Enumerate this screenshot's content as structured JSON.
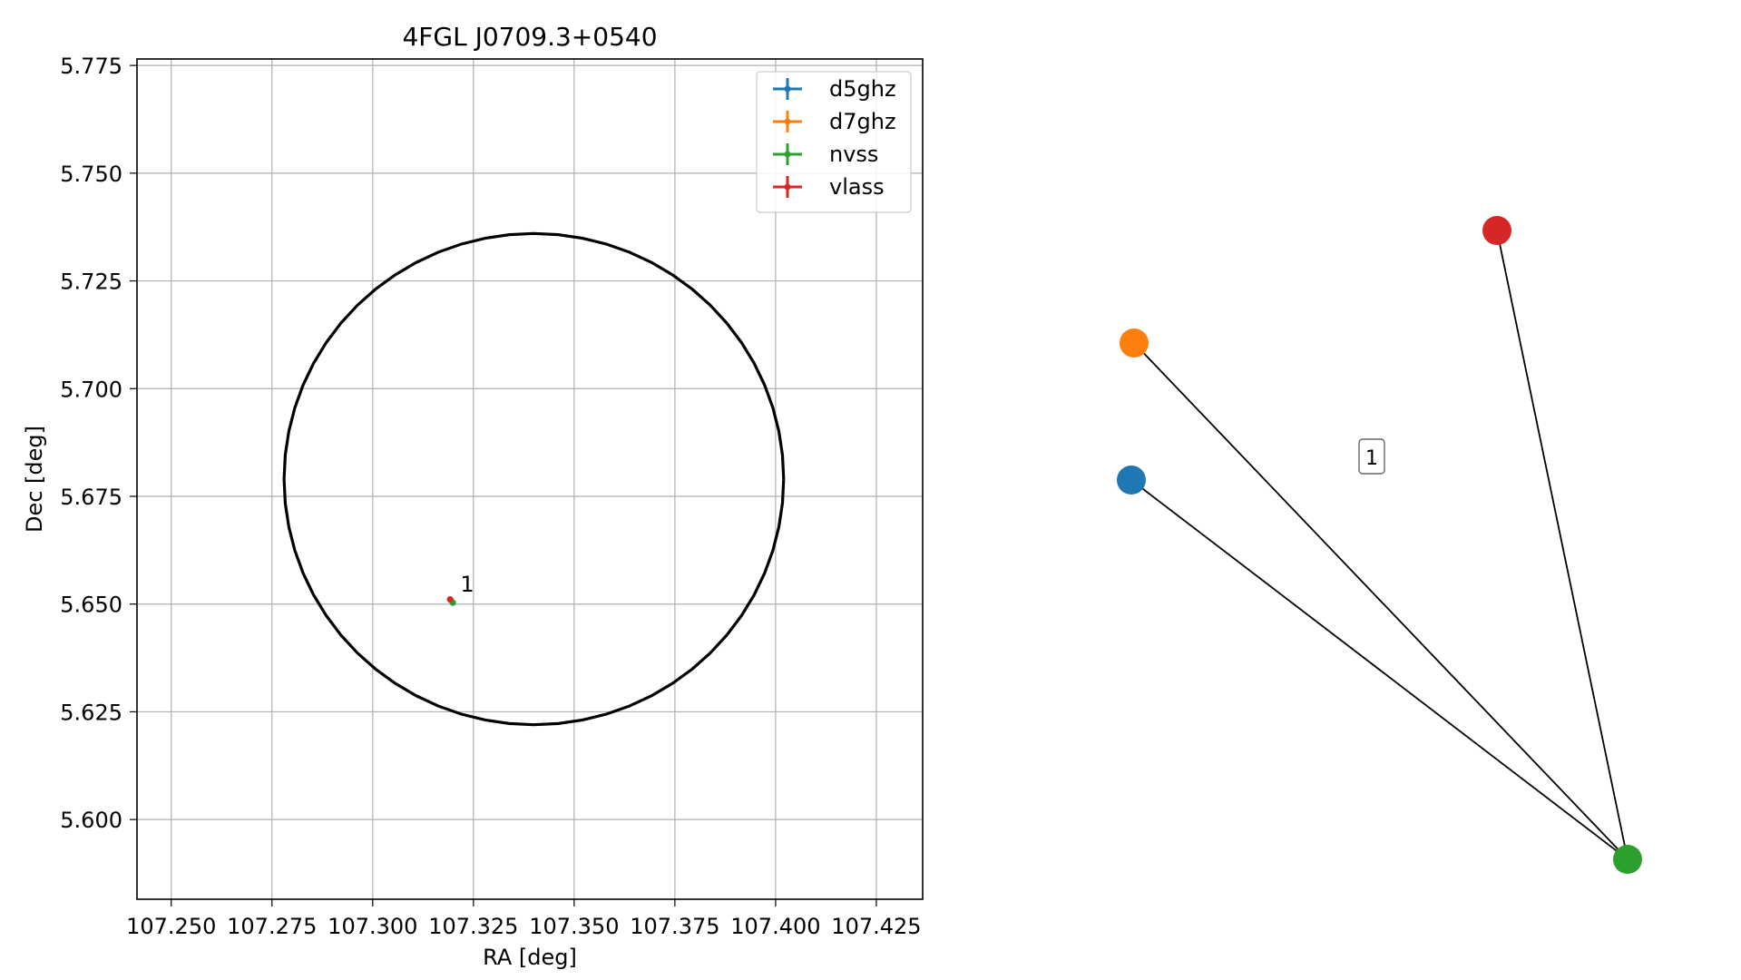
{
  "chart_data": [
    {
      "type": "scatter",
      "title": "4FGL J0709.3+0540",
      "xlabel": "RA [deg]",
      "ylabel": "Dec [deg]",
      "xlim": [
        107.2415,
        107.4365
      ],
      "ylim": [
        5.5815,
        5.7765
      ],
      "xticks": [
        "107.250",
        "107.275",
        "107.300",
        "107.325",
        "107.350",
        "107.375",
        "107.400",
        "107.425"
      ],
      "yticks": [
        "5.600",
        "5.625",
        "5.650",
        "5.675",
        "5.700",
        "5.725",
        "5.750",
        "5.775"
      ],
      "grid": true,
      "legend_position": "upper right",
      "series": [
        {
          "name": "d5ghz",
          "color": "#1f77b4",
          "x": [
            107.3195
          ],
          "y": [
            5.6508
          ]
        },
        {
          "name": "d7ghz",
          "color": "#ff7f0e",
          "x": [
            107.3195
          ],
          "y": [
            5.6508
          ]
        },
        {
          "name": "nvss",
          "color": "#2ca02c",
          "x": [
            107.3199
          ],
          "y": [
            5.6503
          ]
        },
        {
          "name": "vlass",
          "color": "#d62728",
          "x": [
            107.3192
          ],
          "y": [
            5.6511
          ]
        }
      ],
      "annotations": [
        {
          "text": "1",
          "x": 107.3195,
          "y": 5.6508
        }
      ],
      "ellipse": {
        "center": [
          107.34,
          5.679
        ],
        "semi_axes_deg": [
          0.062,
          0.057
        ],
        "color": "#000000"
      }
    },
    {
      "type": "network",
      "nodes": [
        {
          "id": "d5ghz",
          "color": "#1f77b4"
        },
        {
          "id": "d7ghz",
          "color": "#ff7f0e"
        },
        {
          "id": "nvss",
          "color": "#2ca02c"
        },
        {
          "id": "vlass",
          "color": "#d62728"
        }
      ],
      "edges": [
        [
          "d5ghz",
          "nvss"
        ],
        [
          "d7ghz",
          "nvss"
        ],
        [
          "vlass",
          "nvss"
        ]
      ],
      "label": "1"
    }
  ]
}
